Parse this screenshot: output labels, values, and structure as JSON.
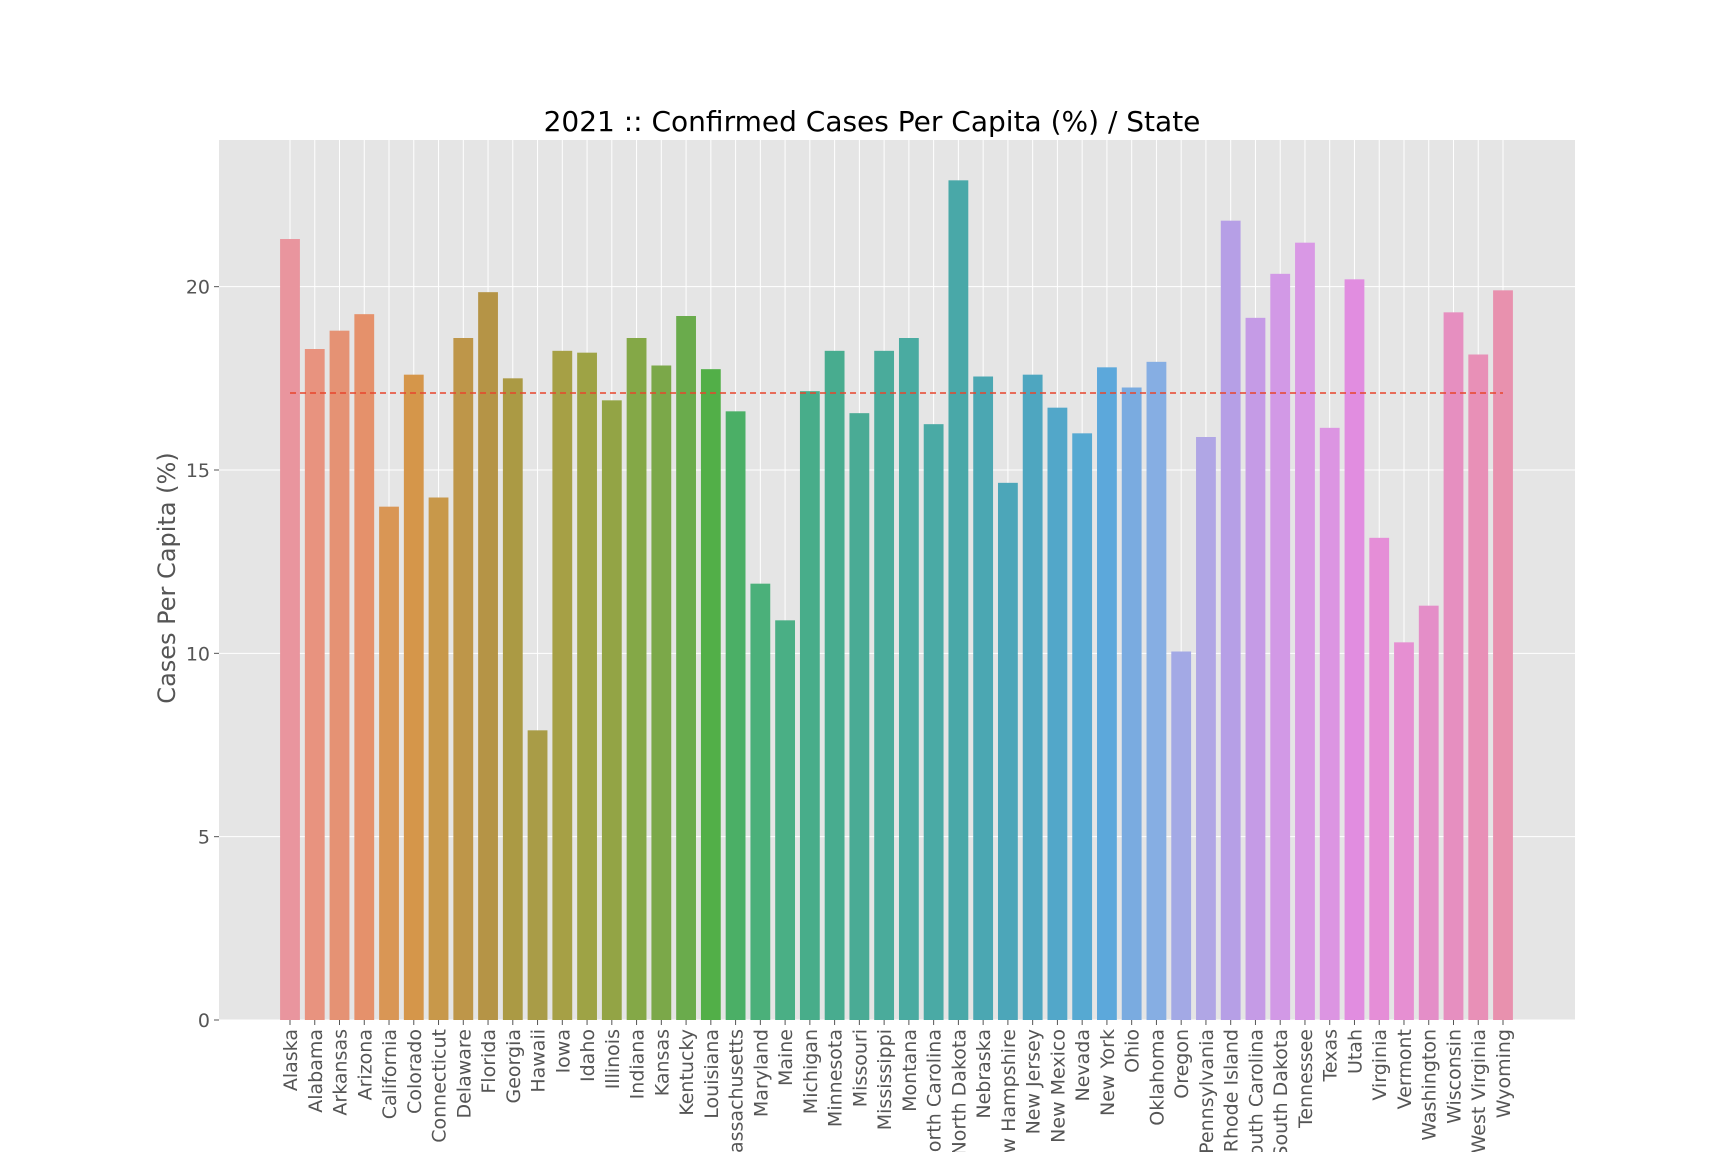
{
  "chart_data": {
    "type": "bar",
    "title": "2021 :: Confirmed Cases Per Capita (%) / State",
    "xlabel": "",
    "ylabel": "Cases Per Capita (%)",
    "ylim": [
      0,
      24
    ],
    "yticks": [
      0,
      5,
      10,
      15,
      20
    ],
    "grid": true,
    "background_color": "#e5e5e5",
    "grid_color": "#ffffff",
    "mean_line": {
      "value": 17.1,
      "color": "#e8452c",
      "style": "dashed"
    },
    "categories": [
      "Alaska",
      "Alabama",
      "Arkansas",
      "Arizona",
      "California",
      "Colorado",
      "Connecticut",
      "Delaware",
      "Florida",
      "Georgia",
      "Hawaii",
      "Iowa",
      "Idaho",
      "Illinois",
      "Indiana",
      "Kansas",
      "Kentucky",
      "Louisiana",
      "Massachusetts",
      "Maryland",
      "Maine",
      "Michigan",
      "Minnesota",
      "Missouri",
      "Mississippi",
      "Montana",
      "North Carolina",
      "North Dakota",
      "Nebraska",
      "New Hampshire",
      "New Jersey",
      "New Mexico",
      "Nevada",
      "New York",
      "Ohio",
      "Oklahoma",
      "Oregon",
      "Pennsylvania",
      "Rhode Island",
      "South Carolina",
      "South Dakota",
      "Tennessee",
      "Texas",
      "Utah",
      "Virginia",
      "Vermont",
      "Washington",
      "Wisconsin",
      "West Virginia",
      "Wyoming"
    ],
    "values": [
      21.3,
      18.3,
      18.8,
      19.25,
      14.0,
      17.6,
      14.25,
      18.6,
      19.85,
      17.5,
      7.9,
      18.25,
      18.2,
      16.9,
      18.6,
      17.85,
      19.2,
      17.75,
      16.6,
      11.9,
      10.9,
      17.15,
      18.25,
      16.55,
      18.25,
      18.6,
      16.25,
      22.9,
      17.55,
      14.65,
      17.6,
      16.7,
      16.0,
      17.8,
      17.25,
      17.95,
      10.05,
      15.9,
      21.8,
      19.15,
      20.35,
      21.2,
      16.15,
      20.2,
      13.15,
      10.3,
      11.3,
      19.3,
      18.15,
      19.9
    ],
    "colors": [
      "#e9959e",
      "#e8937f",
      "#e59274",
      "#e5916b",
      "#d99655",
      "#d5964a",
      "#c8984a",
      "#be9649",
      "#b59446",
      "#ab9a44",
      "#a99c47",
      "#a6a045",
      "#9ea345",
      "#93a445",
      "#84a847",
      "#7ba849",
      "#6aab4c",
      "#52af48",
      "#4baf66",
      "#4bb07a",
      "#4aaf85",
      "#48ad8a",
      "#48ac8f",
      "#4aab95",
      "#4aab9b",
      "#4aabA1",
      "#4aaaa5",
      "#49a8a8",
      "#4ba7b2",
      "#4ca6b9",
      "#4ea6c0",
      "#52a7c9",
      "#56a9d2",
      "#5ca8db",
      "#7aabe0",
      "#86aee3",
      "#a3a9e5",
      "#b0a6e5",
      "#b69fe6",
      "#c59be6",
      "#d299e6",
      "#d998e5",
      "#dc95e2",
      "#e18de0",
      "#e58ed7",
      "#e68fd2",
      "#e48ec8",
      "#e68fc0",
      "#e890b7",
      "#e891ae"
    ]
  }
}
